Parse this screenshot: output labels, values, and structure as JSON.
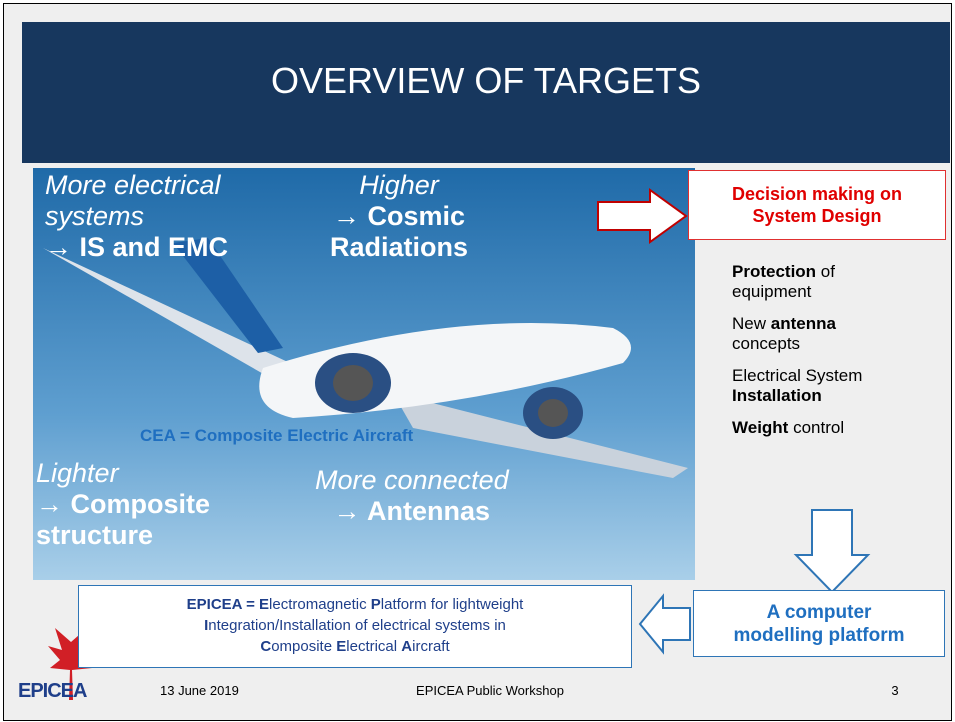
{
  "header": {
    "title": "OVERVIEW OF TARGETS"
  },
  "image_labels": {
    "electrical": {
      "lead": [
        "More electrical",
        "systems"
      ],
      "target": [
        "→ IS and EMC"
      ]
    },
    "higher": {
      "lead": [
        "Higher"
      ],
      "target": [
        "→ Cosmic",
        "Radiations"
      ]
    },
    "cea": "CEA = Composite Electric Aircraft",
    "lighter": {
      "lead": [
        "Lighter"
      ],
      "target": [
        "→ Composite",
        "structure"
      ]
    },
    "connected": {
      "lead": [
        "More connected"
      ],
      "target": [
        "→ Antennas"
      ]
    }
  },
  "decision": [
    "Decision making on",
    "System Design"
  ],
  "outcomes": [
    [
      {
        "t": "Protection",
        "b": true
      },
      {
        "t": " of equipment"
      }
    ],
    [
      {
        "t": "New "
      },
      {
        "t": "antenna",
        "b": true
      },
      {
        "t": " concepts"
      }
    ],
    [
      {
        "t": "Electrical System "
      },
      {
        "t": "Installation",
        "b": true
      }
    ],
    [
      {
        "t": "Weight",
        "b": true
      },
      {
        "t": " control"
      }
    ]
  ],
  "platform": [
    "A computer",
    "modelling platform"
  ],
  "definition": [
    [
      {
        "t": "EPICEA = E",
        "b": true
      },
      {
        "t": "lectromagnetic "
      },
      {
        "t": "P",
        "b": true
      },
      {
        "t": "latform for lightweight"
      }
    ],
    [
      {
        "t": "I",
        "b": true
      },
      {
        "t": "ntegration/Installation of electrical systems in"
      }
    ],
    [
      {
        "t": "C",
        "b": true
      },
      {
        "t": "omposite "
      },
      {
        "t": "E",
        "b": true
      },
      {
        "t": "lectrical "
      },
      {
        "t": "A",
        "b": true
      },
      {
        "t": "ircraft"
      }
    ]
  ],
  "footer": {
    "logo": "EPICEA",
    "date": "13 June 2019",
    "event": "EPICEA Public Workshop",
    "page": "3"
  }
}
